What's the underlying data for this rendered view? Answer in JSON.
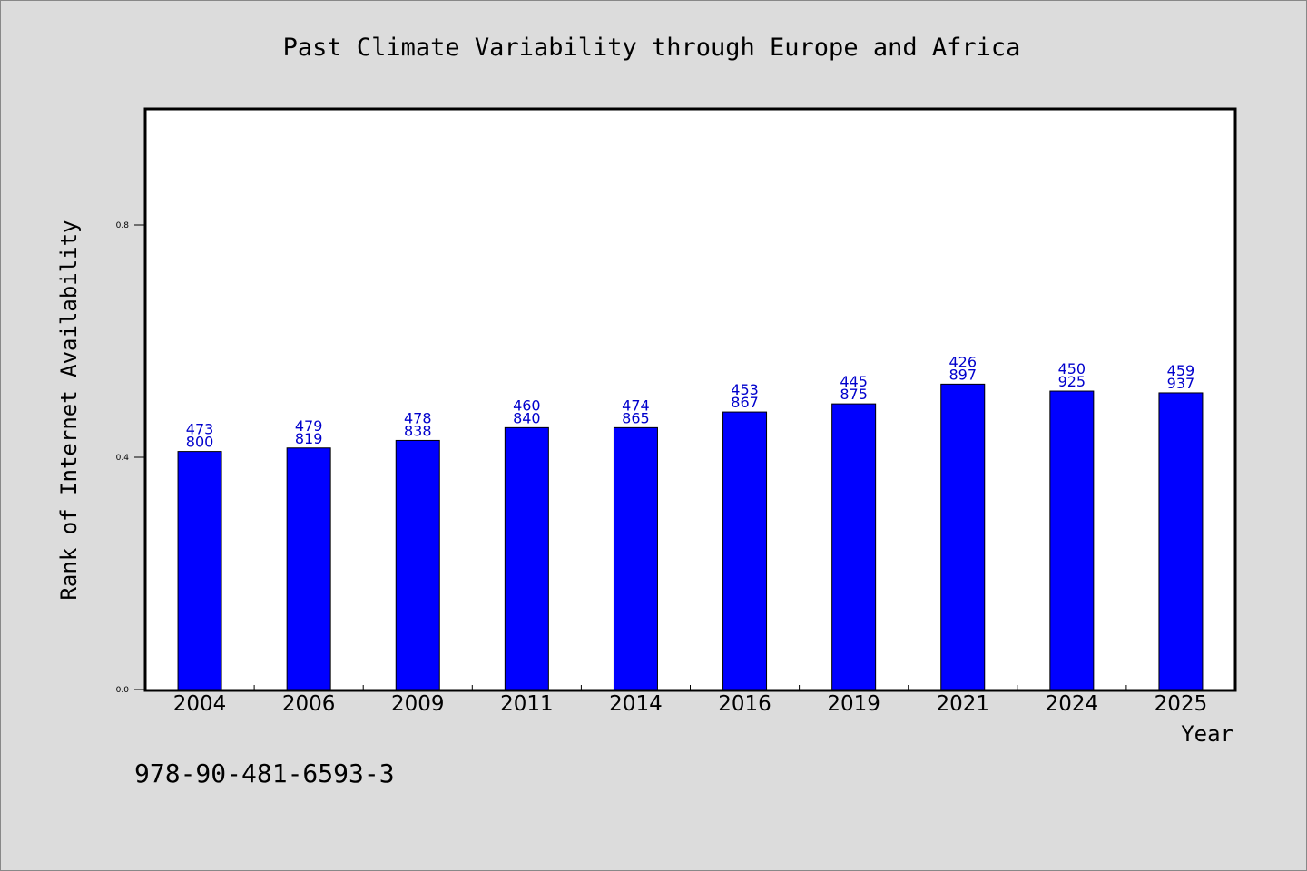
{
  "chart_data": {
    "type": "bar",
    "title": "Past Climate Variability through Europe and Africa",
    "xlabel": "Year",
    "ylabel": "Rank of Internet Availability",
    "categories": [
      "2004",
      "2006",
      "2009",
      "2011",
      "2014",
      "2016",
      "2019",
      "2021",
      "2024",
      "2025"
    ],
    "values": [
      0.41,
      0.416,
      0.429,
      0.451,
      0.451,
      0.478,
      0.492,
      0.526,
      0.514,
      0.511
    ],
    "data_labels": [
      [
        "473",
        "800"
      ],
      [
        "479",
        "819"
      ],
      [
        "478",
        "838"
      ],
      [
        "460",
        "840"
      ],
      [
        "474",
        "865"
      ],
      [
        "453",
        "867"
      ],
      [
        "445",
        "875"
      ],
      [
        "426",
        "897"
      ],
      [
        "450",
        "925"
      ],
      [
        "459",
        "937"
      ]
    ],
    "yticks": [
      "0.0",
      "0.4",
      "0.8"
    ],
    "ylim": [
      0,
      1.0
    ],
    "grid": false,
    "bar_color": "#0000ff",
    "label_color": "#0000cc",
    "background": "#dcdcdc",
    "plot_background": "#ffffff"
  },
  "footer": {
    "isbn": "978-90-481-6593-3"
  }
}
